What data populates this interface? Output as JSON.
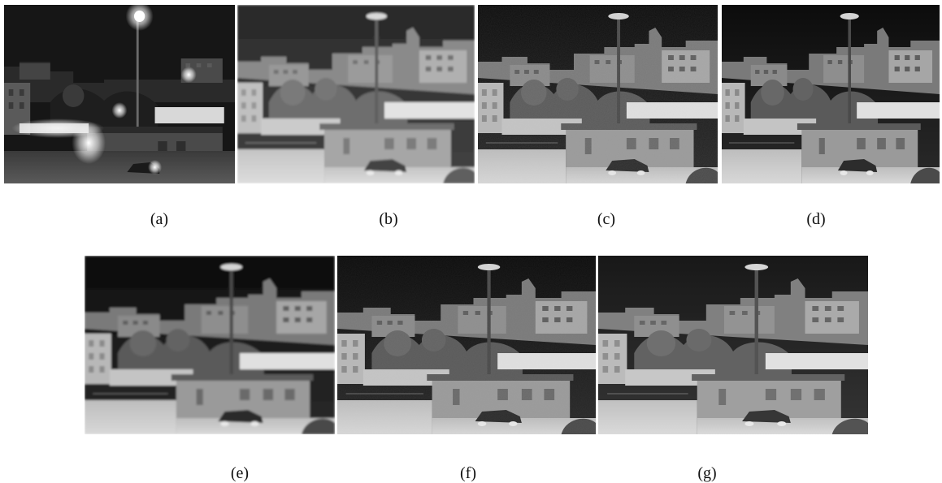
{
  "figure": {
    "panels": [
      {
        "id": "a",
        "caption": "(a)"
      },
      {
        "id": "b",
        "caption": "(b)"
      },
      {
        "id": "c",
        "caption": "(c)"
      },
      {
        "id": "d",
        "caption": "(d)"
      },
      {
        "id": "e",
        "caption": "(e)"
      },
      {
        "id": "f",
        "caption": "(f)"
      },
      {
        "id": "g",
        "caption": "(g)"
      }
    ]
  }
}
